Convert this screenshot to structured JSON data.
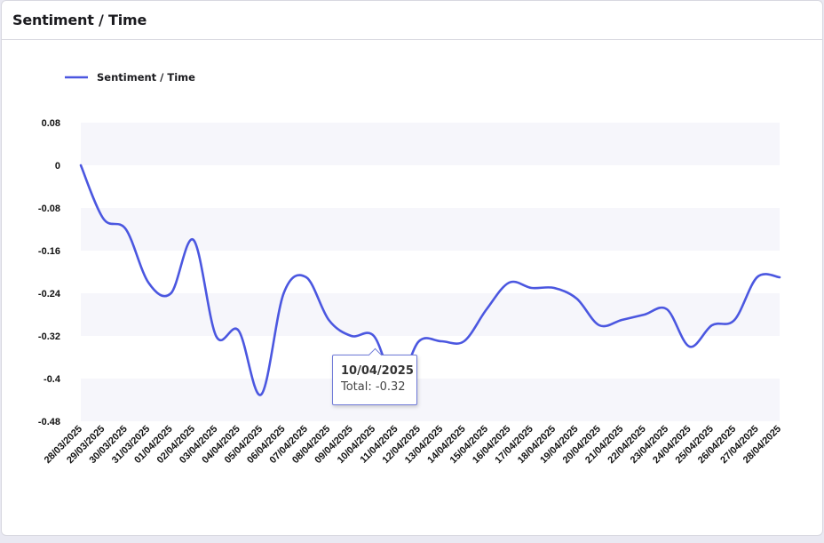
{
  "card": {
    "title": "Sentiment / Time"
  },
  "tooltip": {
    "date": "10/04/2025",
    "text": "Total: -0.32"
  },
  "colors": {
    "line": "#4b57e0",
    "band": "#f6f6fb",
    "tooltip_border": "#6f7ad8"
  },
  "chart_data": {
    "type": "line",
    "title": "",
    "xlabel": "",
    "ylabel": "",
    "legend": {
      "position": "top-left",
      "entries": [
        "Sentiment / Time"
      ]
    },
    "ylim": [
      -0.48,
      0.08
    ],
    "yticks": [
      0.08,
      0,
      -0.08,
      -0.16,
      -0.24,
      -0.32,
      -0.4,
      -0.48
    ],
    "ytick_labels": [
      "0.08",
      "0",
      "-0.08",
      "-0.16",
      "-0.24",
      "-0.32",
      "-0.4",
      "-0.48"
    ],
    "categories": [
      "28/03/2025",
      "29/03/2025",
      "30/03/2025",
      "31/03/2025",
      "01/04/2025",
      "02/04/2025",
      "03/04/2025",
      "04/04/2025",
      "05/04/2025",
      "06/04/2025",
      "07/04/2025",
      "08/04/2025",
      "09/04/2025",
      "10/04/2025",
      "11/04/2025",
      "12/04/2025",
      "13/04/2025",
      "14/04/2025",
      "15/04/2025",
      "16/04/2025",
      "17/04/2025",
      "18/04/2025",
      "19/04/2025",
      "20/04/2025",
      "21/04/2025",
      "22/04/2025",
      "23/04/2025",
      "24/04/2025",
      "25/04/2025",
      "26/04/2025",
      "27/04/2025",
      "28/04/2025"
    ],
    "series": [
      {
        "name": "Sentiment / Time",
        "values": [
          0.0,
          -0.1,
          -0.12,
          -0.22,
          -0.24,
          -0.14,
          -0.32,
          -0.31,
          -0.43,
          -0.24,
          -0.21,
          -0.29,
          -0.32,
          -0.32,
          -0.41,
          -0.33,
          -0.33,
          -0.33,
          -0.27,
          -0.22,
          -0.23,
          -0.23,
          -0.25,
          -0.3,
          -0.29,
          -0.28,
          -0.27,
          -0.34,
          -0.3,
          -0.29,
          -0.21,
          -0.21
        ]
      }
    ],
    "grid": false,
    "alternating_bands": true
  }
}
